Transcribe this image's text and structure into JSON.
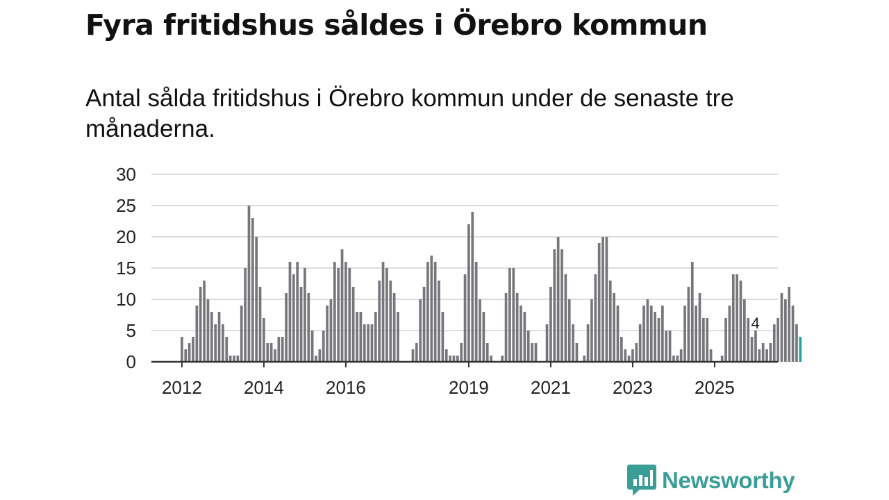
{
  "title": "Fyra fritidshus såldes i Örebro kommun",
  "subtitle": "Antal sålda fritidshus i Örebro kommun under de senaste tre månaderna.",
  "brand": {
    "name": "Newsworthy",
    "icon": "newsworthy-logo-icon",
    "color": "#3a9e96"
  },
  "colors": {
    "bar": "#77767b",
    "highlight": "#22a39f",
    "grid": "#dddddd",
    "axis": "#333333"
  },
  "chart_data": {
    "type": "bar",
    "title": "Fyra fritidshus såldes i Örebro kommun",
    "xlabel": "",
    "ylabel": "",
    "ylim": [
      0,
      30
    ],
    "yticks": [
      0,
      5,
      10,
      15,
      20,
      25,
      30
    ],
    "xticks": [
      {
        "label": "2012",
        "index": 0
      },
      {
        "label": "2014",
        "index": 22
      },
      {
        "label": "2016",
        "index": 44
      },
      {
        "label": "2019",
        "index": 77
      },
      {
        "label": "2021",
        "index": 99
      },
      {
        "label": "2023",
        "index": 121
      },
      {
        "label": "2025",
        "index": 143
      }
    ],
    "values": [
      4,
      2,
      3,
      4,
      9,
      12,
      13,
      10,
      8,
      6,
      8,
      6,
      4,
      1,
      1,
      1,
      9,
      15,
      25,
      23,
      20,
      12,
      7,
      3,
      3,
      2,
      4,
      4,
      11,
      16,
      14,
      16,
      12,
      15,
      11,
      5,
      1,
      2,
      5,
      9,
      10,
      16,
      15,
      18,
      16,
      15,
      12,
      8,
      8,
      6,
      6,
      6,
      8,
      13,
      16,
      15,
      13,
      11,
      8,
      0,
      0,
      0,
      2,
      3,
      10,
      12,
      16,
      17,
      16,
      13,
      8,
      2,
      1,
      1,
      1,
      3,
      14,
      22,
      24,
      16,
      10,
      8,
      3,
      1,
      0,
      0,
      1,
      11,
      15,
      15,
      11,
      9,
      8,
      5,
      3,
      3,
      0,
      0,
      6,
      12,
      18,
      20,
      18,
      14,
      10,
      6,
      3,
      0,
      1,
      6,
      10,
      14,
      19,
      20,
      20,
      13,
      11,
      9,
      4,
      2,
      1,
      2,
      3,
      6,
      9,
      10,
      9,
      8,
      7,
      9,
      5,
      5,
      1,
      1,
      2,
      9,
      12,
      16,
      9,
      11,
      7,
      7,
      2,
      0,
      0,
      1,
      7,
      9,
      14,
      14,
      13,
      10,
      7,
      4,
      5,
      2,
      3,
      2,
      3,
      6,
      7,
      11,
      10,
      12,
      9,
      6,
      4
    ],
    "highlight_last": true,
    "data_labels": [
      {
        "index": 153,
        "text": "4"
      }
    ]
  }
}
